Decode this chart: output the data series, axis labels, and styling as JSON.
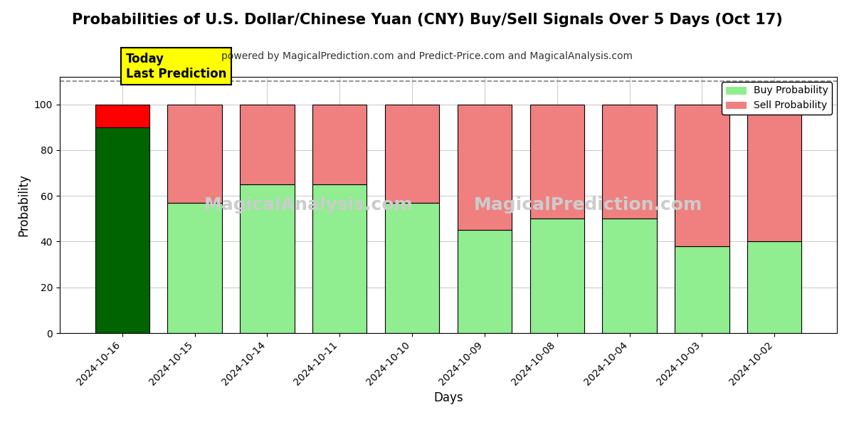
{
  "title": "Probabilities of U.S. Dollar/Chinese Yuan (CNY) Buy/Sell Signals Over 5 Days (Oct 17)",
  "subtitle": "powered by MagicalPrediction.com and Predict-Price.com and MagicalAnalysis.com",
  "xlabel": "Days",
  "ylabel": "Probability",
  "categories": [
    "2024-10-16",
    "2024-10-15",
    "2024-10-14",
    "2024-10-11",
    "2024-10-10",
    "2024-10-09",
    "2024-10-08",
    "2024-10-04",
    "2024-10-03",
    "2024-10-02"
  ],
  "buy_values": [
    90,
    57,
    65,
    65,
    57,
    45,
    50,
    50,
    38,
    40
  ],
  "sell_values": [
    10,
    43,
    35,
    35,
    43,
    55,
    50,
    50,
    62,
    60
  ],
  "today_bar_buy_color": "#006400",
  "today_bar_sell_color": "#FF0000",
  "other_bar_buy_color": "#90EE90",
  "other_bar_sell_color": "#F08080",
  "bar_edge_color": "#000000",
  "background_color": "#ffffff",
  "watermark_color": "#cccccc",
  "ylim": [
    0,
    112
  ],
  "yticks": [
    0,
    20,
    40,
    60,
    80,
    100
  ],
  "dashed_line_y": 110,
  "legend_buy_label": "Buy Probability",
  "legend_sell_label": "Sell Probability",
  "today_label_text": "Today\nLast Prediction",
  "today_label_bg": "#FFFF00",
  "grid_color": "#cccccc",
  "title_fontsize": 15,
  "subtitle_fontsize": 10,
  "axis_label_fontsize": 12,
  "tick_fontsize": 10
}
